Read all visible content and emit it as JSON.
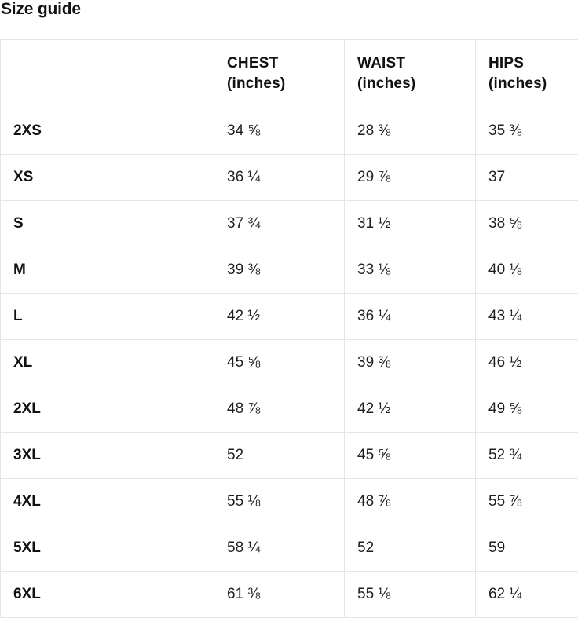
{
  "page": {
    "title": "Size guide"
  },
  "colors": {
    "border": "#e5e5e5",
    "text": "#1a1a1a",
    "background": "#ffffff"
  },
  "table": {
    "columns": [
      {
        "label": "",
        "unit": ""
      },
      {
        "label": "CHEST",
        "unit": "(inches)"
      },
      {
        "label": "WAIST",
        "unit": "(inches)"
      },
      {
        "label": "HIPS",
        "unit": "(inches)"
      }
    ],
    "rows": [
      [
        "2XS",
        "34 ⅝",
        "28 ⅜",
        "35 ⅜"
      ],
      [
        "XS",
        "36 ¼",
        "29 ⅞",
        "37"
      ],
      [
        "S",
        "37 ¾",
        "31 ½",
        "38 ⅝"
      ],
      [
        "M",
        "39 ⅜",
        "33 ⅛",
        "40 ⅛"
      ],
      [
        "L",
        "42 ½",
        "36 ¼",
        "43 ¼"
      ],
      [
        "XL",
        "45 ⅝",
        "39 ⅜",
        "46 ½"
      ],
      [
        "2XL",
        "48 ⅞",
        "42 ½",
        "49 ⅝"
      ],
      [
        "3XL",
        "52",
        "45 ⅝",
        "52 ¾"
      ],
      [
        "4XL",
        "55 ⅛",
        "48 ⅞",
        "55 ⅞"
      ],
      [
        "5XL",
        "58 ¼",
        "52",
        "59"
      ],
      [
        "6XL",
        "61 ⅜",
        "55 ⅛",
        "62 ¼"
      ]
    ]
  }
}
